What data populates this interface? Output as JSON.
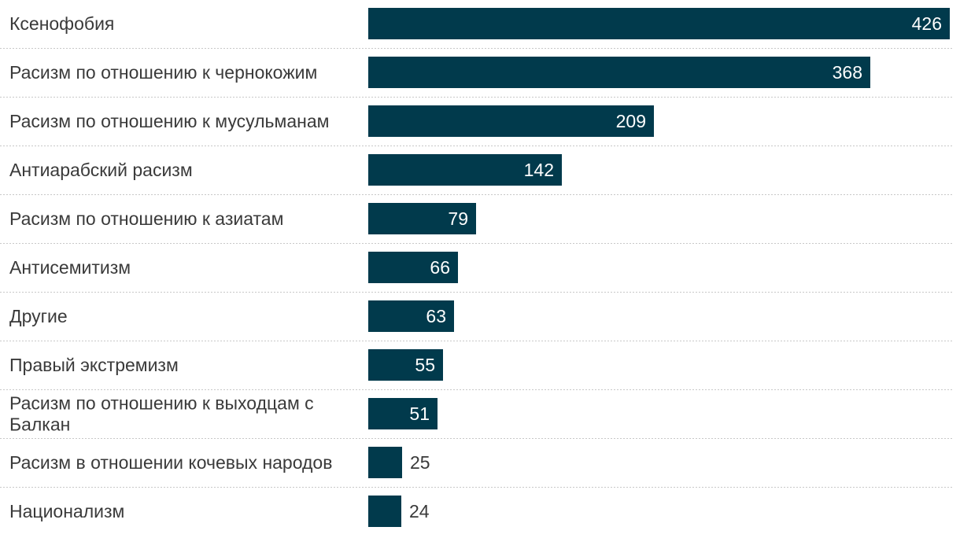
{
  "chart_data": {
    "type": "bar",
    "orientation": "horizontal",
    "categories": [
      "Ксенофобия",
      "Расизм по отношению к чернокожим",
      "Расизм по отношению к мусульманам",
      "Антиарабский расизм",
      "Расизм по отношению к азиатам",
      "Антисемитизм",
      "Другие",
      "Правый экстремизм",
      "Расизм по отношению к выходцам с Балкан",
      "Расизм в отношении кочевых народов",
      "Национализм"
    ],
    "category_lines": [
      [
        "Ксенофобия"
      ],
      [
        "Расизм по отношению к чернокожим"
      ],
      [
        "Расизм по отношению к мусульманам"
      ],
      [
        "Антиарабский расизм"
      ],
      [
        "Расизм по отношению к азиатам"
      ],
      [
        "Антисемитизм"
      ],
      [
        "Другие"
      ],
      [
        "Правый экстремизм"
      ],
      [
        "Расизм по отношению к выходцам с",
        "Балкан"
      ],
      [
        "Расизм в отношении кочевых народов"
      ],
      [
        "Национализм"
      ]
    ],
    "values": [
      426,
      368,
      209,
      142,
      79,
      66,
      63,
      55,
      51,
      25,
      24
    ],
    "xlim": [
      0,
      426
    ],
    "grid": false,
    "legend": "none",
    "colors": {
      "bar": "#013a4c",
      "label_text": "#3a3a3a",
      "value_inside": "#ffffff",
      "value_outside": "#3a3a3a",
      "separator": "#c8c8c8"
    }
  }
}
